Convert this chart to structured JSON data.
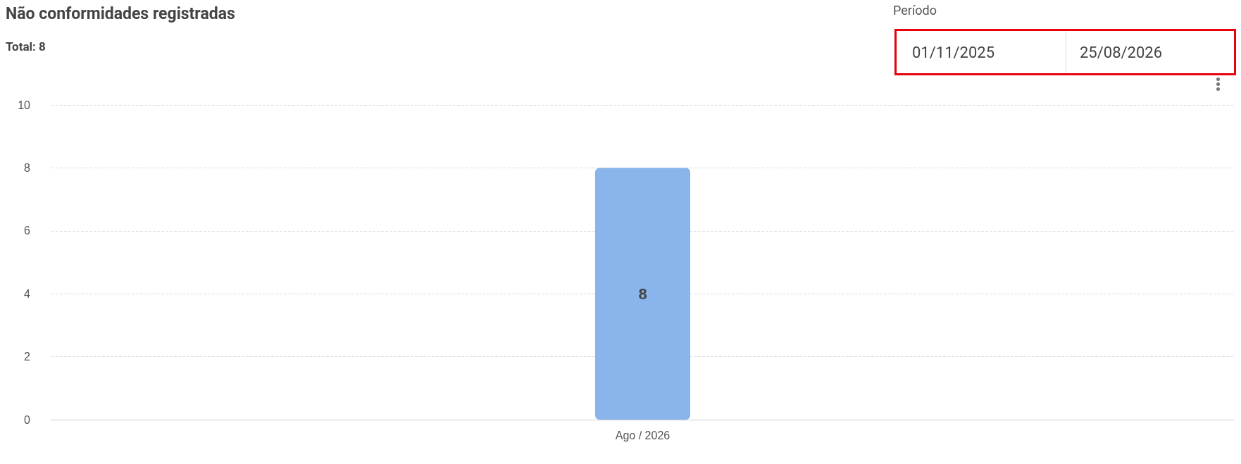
{
  "chart_data": {
    "type": "bar",
    "title": "Não conformidades registradas",
    "subtitle": "Total: 8",
    "annotations": [
      "Período",
      "01/11/2025",
      "25/08/2026"
    ],
    "categories": [
      "Ago / 2026"
    ],
    "values": [
      8
    ],
    "color": "#8ab4ec",
    "ylim": [
      0,
      10
    ],
    "yticks": [
      0,
      2,
      4,
      6,
      8,
      10
    ],
    "grid": "y",
    "data_labels": true
  }
}
